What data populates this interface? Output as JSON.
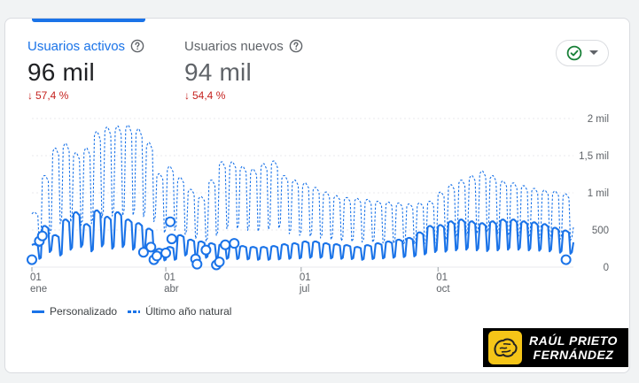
{
  "metrics": [
    {
      "label": "Usuarios activos",
      "value": "96 mil",
      "delta": "57,4 %",
      "selected": true
    },
    {
      "label": "Usuarios nuevos",
      "value": "94 mil",
      "delta": "54,4 %",
      "selected": false
    }
  ],
  "status_button": {
    "icon": "check-circle-icon",
    "dropdown_icon": "arrow-drop-down-icon"
  },
  "colors": {
    "primary": "#1a73e8",
    "negative": "#c5221f",
    "check": "#188038"
  },
  "legend": {
    "current": "Personalizado",
    "previous": "Último año natural"
  },
  "watermark": {
    "line1": "RAÚL PRIETO",
    "line2": "FERNÁNDEZ"
  },
  "chart_data": {
    "type": "line",
    "y_ticks": [
      "2 mil",
      "1,5 mil",
      "1 mil",
      "500",
      "0"
    ],
    "y_tick_values": [
      2000,
      1500,
      1000,
      500,
      0
    ],
    "ylim": [
      0,
      2000
    ],
    "x_ticks": [
      {
        "day": "01",
        "month": "ene",
        "index": 0
      },
      {
        "day": "01",
        "month": "abr",
        "index": 90
      },
      {
        "day": "01",
        "month": "jul",
        "index": 181
      },
      {
        "day": "01",
        "month": "oct",
        "index": 273
      }
    ],
    "x_days": 365,
    "grid": true,
    "legend_position": "bottom-left",
    "series": [
      {
        "name": "Personalizado",
        "style": "solid",
        "weekly_values": [
          250,
          450,
          350,
          520,
          600,
          470,
          620,
          550,
          600,
          520,
          480,
          420,
          200,
          220,
          350,
          300,
          280,
          260,
          250,
          240,
          230,
          220,
          220,
          230,
          250,
          260,
          280,
          280,
          260,
          250,
          240,
          220,
          240,
          260,
          280,
          300,
          320,
          380,
          450,
          460,
          500,
          520,
          500,
          480,
          500,
          520,
          520,
          500,
          490,
          470,
          430,
          400,
          280
        ]
      },
      {
        "name": "Último año natural",
        "style": "dashed",
        "weekly_values": [
          600,
          1000,
          1300,
          1350,
          1250,
          1300,
          1480,
          1530,
          1540,
          1550,
          1510,
          1360,
          1020,
          1100,
          980,
          850,
          770,
          950,
          1150,
          1150,
          1100,
          1070,
          1130,
          1160,
          1000,
          950,
          920,
          870,
          820,
          780,
          760,
          750,
          740,
          720,
          710,
          700,
          690,
          700,
          720,
          820,
          900,
          950,
          1000,
          1050,
          1000,
          940,
          920,
          890,
          860,
          840,
          830,
          800,
          450
        ]
      }
    ],
    "markers": [
      {
        "index": 0,
        "value": 100
      },
      {
        "index": 5,
        "value": 350
      },
      {
        "index": 7,
        "value": 420
      },
      {
        "index": 75,
        "value": 200
      },
      {
        "index": 80,
        "value": 270
      },
      {
        "index": 82,
        "value": 100
      },
      {
        "index": 84,
        "value": 150
      },
      {
        "index": 90,
        "value": 190
      },
      {
        "index": 93,
        "value": 610
      },
      {
        "index": 94,
        "value": 380
      },
      {
        "index": 110,
        "value": 110
      },
      {
        "index": 111,
        "value": 40
      },
      {
        "index": 117,
        "value": 230
      },
      {
        "index": 124,
        "value": 30
      },
      {
        "index": 126,
        "value": 70
      },
      {
        "index": 130,
        "value": 300
      },
      {
        "index": 136,
        "value": 320
      },
      {
        "index": 359,
        "value": 100
      }
    ]
  }
}
